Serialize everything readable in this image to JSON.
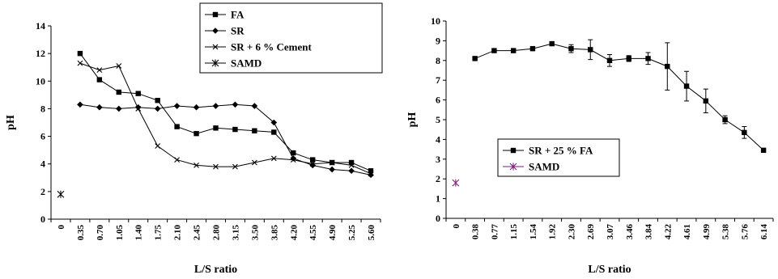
{
  "chart_data": [
    {
      "type": "line",
      "title": "",
      "xlabel": "L/S ratio",
      "ylabel": "pH",
      "ylim": [
        0,
        14
      ],
      "yticks": [
        0,
        2,
        4,
        6,
        8,
        10,
        12,
        14
      ],
      "categories": [
        "0",
        "0.35",
        "0.70",
        "1.05",
        "1.40",
        "1.75",
        "2.10",
        "2.45",
        "2.80",
        "3.15",
        "3.50",
        "3.85",
        "4.20",
        "4.55",
        "4.90",
        "5.25",
        "5.60"
      ],
      "grid": false,
      "legend_position": "top-right",
      "series": [
        {
          "name": "FA",
          "marker": "square",
          "color": "#000000",
          "values": [
            null,
            12.0,
            10.1,
            9.2,
            9.1,
            8.6,
            6.7,
            6.2,
            6.6,
            6.5,
            6.4,
            6.3,
            4.8,
            4.3,
            4.1,
            4.1,
            3.5
          ]
        },
        {
          "name": "SR",
          "marker": "diamond",
          "color": "#000000",
          "values": [
            null,
            8.3,
            8.1,
            8.0,
            8.1,
            8.0,
            8.2,
            8.1,
            8.2,
            8.3,
            8.2,
            7.0,
            4.4,
            3.9,
            3.6,
            3.5,
            3.2
          ]
        },
        {
          "name": "SR + 6 % Cement",
          "marker": "x",
          "color": "#000000",
          "values": [
            null,
            11.3,
            10.8,
            11.1,
            8.0,
            5.3,
            4.3,
            3.9,
            3.8,
            3.8,
            4.1,
            4.4,
            4.3,
            4.0,
            4.1,
            3.9,
            3.3
          ]
        },
        {
          "name": "SAMD",
          "marker": "star",
          "color": "#000000",
          "values": [
            1.8,
            null,
            null,
            null,
            null,
            null,
            null,
            null,
            null,
            null,
            null,
            null,
            null,
            null,
            null,
            null,
            null
          ]
        }
      ]
    },
    {
      "type": "line",
      "title": "",
      "xlabel": "L/S ratio",
      "ylabel": "pH",
      "ylim": [
        0,
        10
      ],
      "yticks": [
        0,
        1,
        2,
        3,
        4,
        5,
        6,
        7,
        8,
        9,
        10
      ],
      "categories": [
        "0",
        "0.38",
        "0.77",
        "1.15",
        "1.54",
        "1.92",
        "2.30",
        "2.69",
        "3.07",
        "3.46",
        "3.84",
        "4.22",
        "4.61",
        "4.99",
        "5.38",
        "5.76",
        "6.14"
      ],
      "grid": false,
      "legend_position": "center-left",
      "series": [
        {
          "name": "SR + 25 % FA",
          "marker": "square",
          "color": "#000000",
          "values": [
            null,
            8.1,
            8.5,
            8.5,
            8.6,
            8.85,
            8.6,
            8.55,
            8.0,
            8.1,
            8.1,
            7.7,
            6.7,
            5.95,
            5.0,
            4.35,
            3.45
          ],
          "error": [
            null,
            0.05,
            0.1,
            0.05,
            0.05,
            0.1,
            0.2,
            0.5,
            0.3,
            0.15,
            0.3,
            1.2,
            0.75,
            0.6,
            0.2,
            0.3,
            0.05
          ]
        },
        {
          "name": "SAMD",
          "marker": "star",
          "color": "#7a1f7a",
          "values": [
            1.8,
            null,
            null,
            null,
            null,
            null,
            null,
            null,
            null,
            null,
            null,
            null,
            null,
            null,
            null,
            null,
            null
          ]
        }
      ]
    }
  ]
}
